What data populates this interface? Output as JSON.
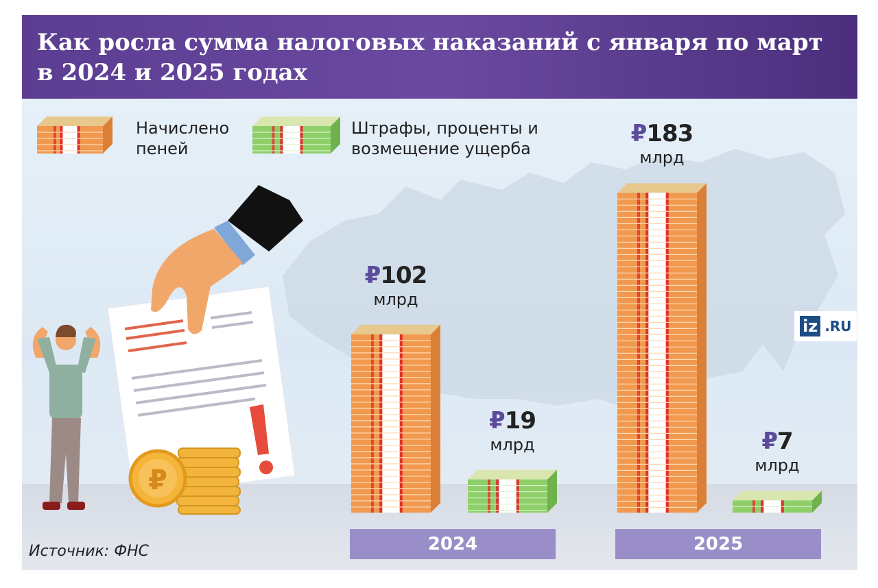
{
  "title": "Как росла сумма налоговых наказаний с января по март в 2024 и 2025 годах",
  "legend": {
    "penalties": "Начислено пеней",
    "fines": "Штрафы, проценты и возмещение ущерба"
  },
  "source": "Источник: ФНС",
  "logo": {
    "box": "iz",
    "text": ".RU"
  },
  "colors": {
    "header": "#5b3d92",
    "penalties": "#f0994f",
    "fines": "#8fcf6a",
    "year_bar": "#9a8ec9",
    "currency": "#5b4b9a"
  },
  "icons": [
    "money-stack-orange-icon",
    "money-stack-green-icon",
    "hand-icon",
    "document-icon",
    "exclamation-icon",
    "ruble-coin-icon",
    "person-icon",
    "russia-map-icon"
  ],
  "chart_data": {
    "type": "bar",
    "categories": [
      "2024",
      "2025"
    ],
    "unit": "млрд",
    "currency_symbol": "₽",
    "series": [
      {
        "name": "Начислено пеней",
        "values": [
          102,
          183
        ],
        "labels": [
          "102",
          "183"
        ]
      },
      {
        "name": "Штрафы, проценты и возмещение ущерба",
        "values": [
          19,
          7
        ],
        "labels": [
          "19",
          "7"
        ]
      }
    ]
  }
}
